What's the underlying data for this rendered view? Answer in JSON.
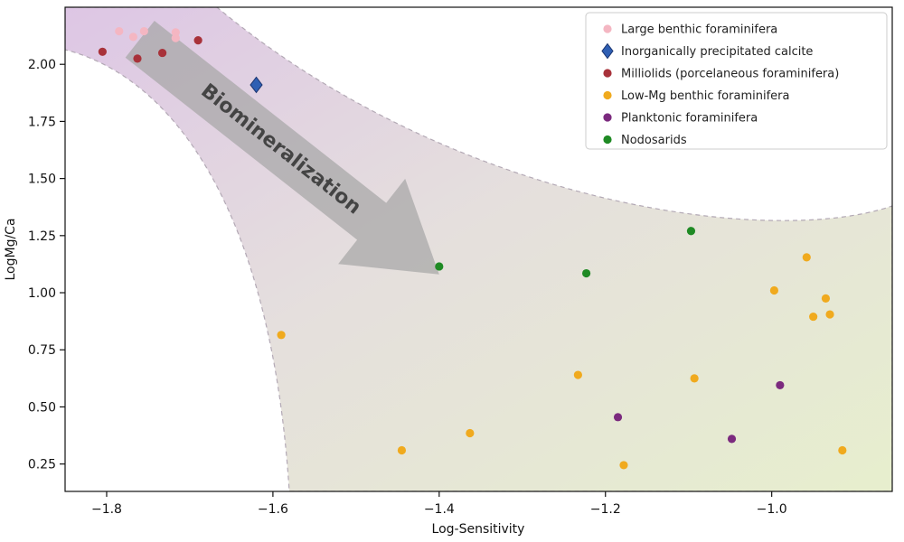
{
  "chart_data": {
    "type": "scatter",
    "xlabel": "Log-Sensitivity",
    "ylabel": "LogMg/Ca",
    "xlim": [
      -1.85,
      -0.855
    ],
    "ylim": [
      0.13,
      2.25
    ],
    "x_ticks": [
      -1.8,
      -1.6,
      -1.4,
      -1.2,
      -1.0
    ],
    "x_tick_labels": [
      "−1.8",
      "−1.6",
      "−1.4",
      "−1.2",
      "−1.0"
    ],
    "y_ticks": [
      0.25,
      0.5,
      0.75,
      1.0,
      1.25,
      1.5,
      1.75,
      2.0
    ],
    "y_tick_labels": [
      "0.25",
      "0.50",
      "0.75",
      "1.00",
      "1.25",
      "1.50",
      "1.75",
      "2.00"
    ],
    "grid": false,
    "legend_position": "top-right",
    "annotation": {
      "text": "Biomineralization",
      "from": [
        -1.76,
        2.11
      ],
      "to": [
        -1.4,
        1.08
      ]
    },
    "series": [
      {
        "name": "Large benthic foraminifera",
        "color": "#f4b6c2",
        "marker": "circle",
        "points": [
          [
            -1.785,
            2.145
          ],
          [
            -1.768,
            2.12
          ],
          [
            -1.755,
            2.145
          ],
          [
            -1.717,
            2.14
          ],
          [
            -1.717,
            2.115
          ]
        ]
      },
      {
        "name": "Inorganically precipitated calcite",
        "color": "#2f5fb3",
        "marker": "diamond",
        "points": [
          [
            -1.62,
            1.91
          ]
        ]
      },
      {
        "name": "Milliolids (porcelaneous foraminifera)",
        "color": "#a8323a",
        "marker": "circle",
        "points": [
          [
            -1.805,
            2.055
          ],
          [
            -1.763,
            2.025
          ],
          [
            -1.733,
            2.05
          ],
          [
            -1.69,
            2.105
          ]
        ]
      },
      {
        "name": "Low-Mg benthic foraminifera",
        "color": "#f0aa1e",
        "marker": "circle",
        "points": [
          [
            -1.59,
            0.815
          ],
          [
            -1.445,
            0.31
          ],
          [
            -1.363,
            0.385
          ],
          [
            -1.233,
            0.64
          ],
          [
            -1.178,
            0.245
          ],
          [
            -1.093,
            0.625
          ],
          [
            -0.997,
            1.01
          ],
          [
            -0.958,
            1.155
          ],
          [
            -0.95,
            0.895
          ],
          [
            -0.935,
            0.975
          ],
          [
            -0.93,
            0.905
          ],
          [
            -0.915,
            0.31
          ]
        ]
      },
      {
        "name": "Planktonic foraminifera",
        "color": "#7b2a7e",
        "marker": "circle",
        "points": [
          [
            -1.185,
            0.455
          ],
          [
            -1.048,
            0.36
          ],
          [
            -0.99,
            0.595
          ]
        ]
      },
      {
        "name": "Nodosarids",
        "color": "#1f8a24",
        "marker": "circle",
        "points": [
          [
            -1.4,
            1.115
          ],
          [
            -1.223,
            1.085
          ],
          [
            -1.097,
            1.27
          ]
        ]
      }
    ]
  }
}
